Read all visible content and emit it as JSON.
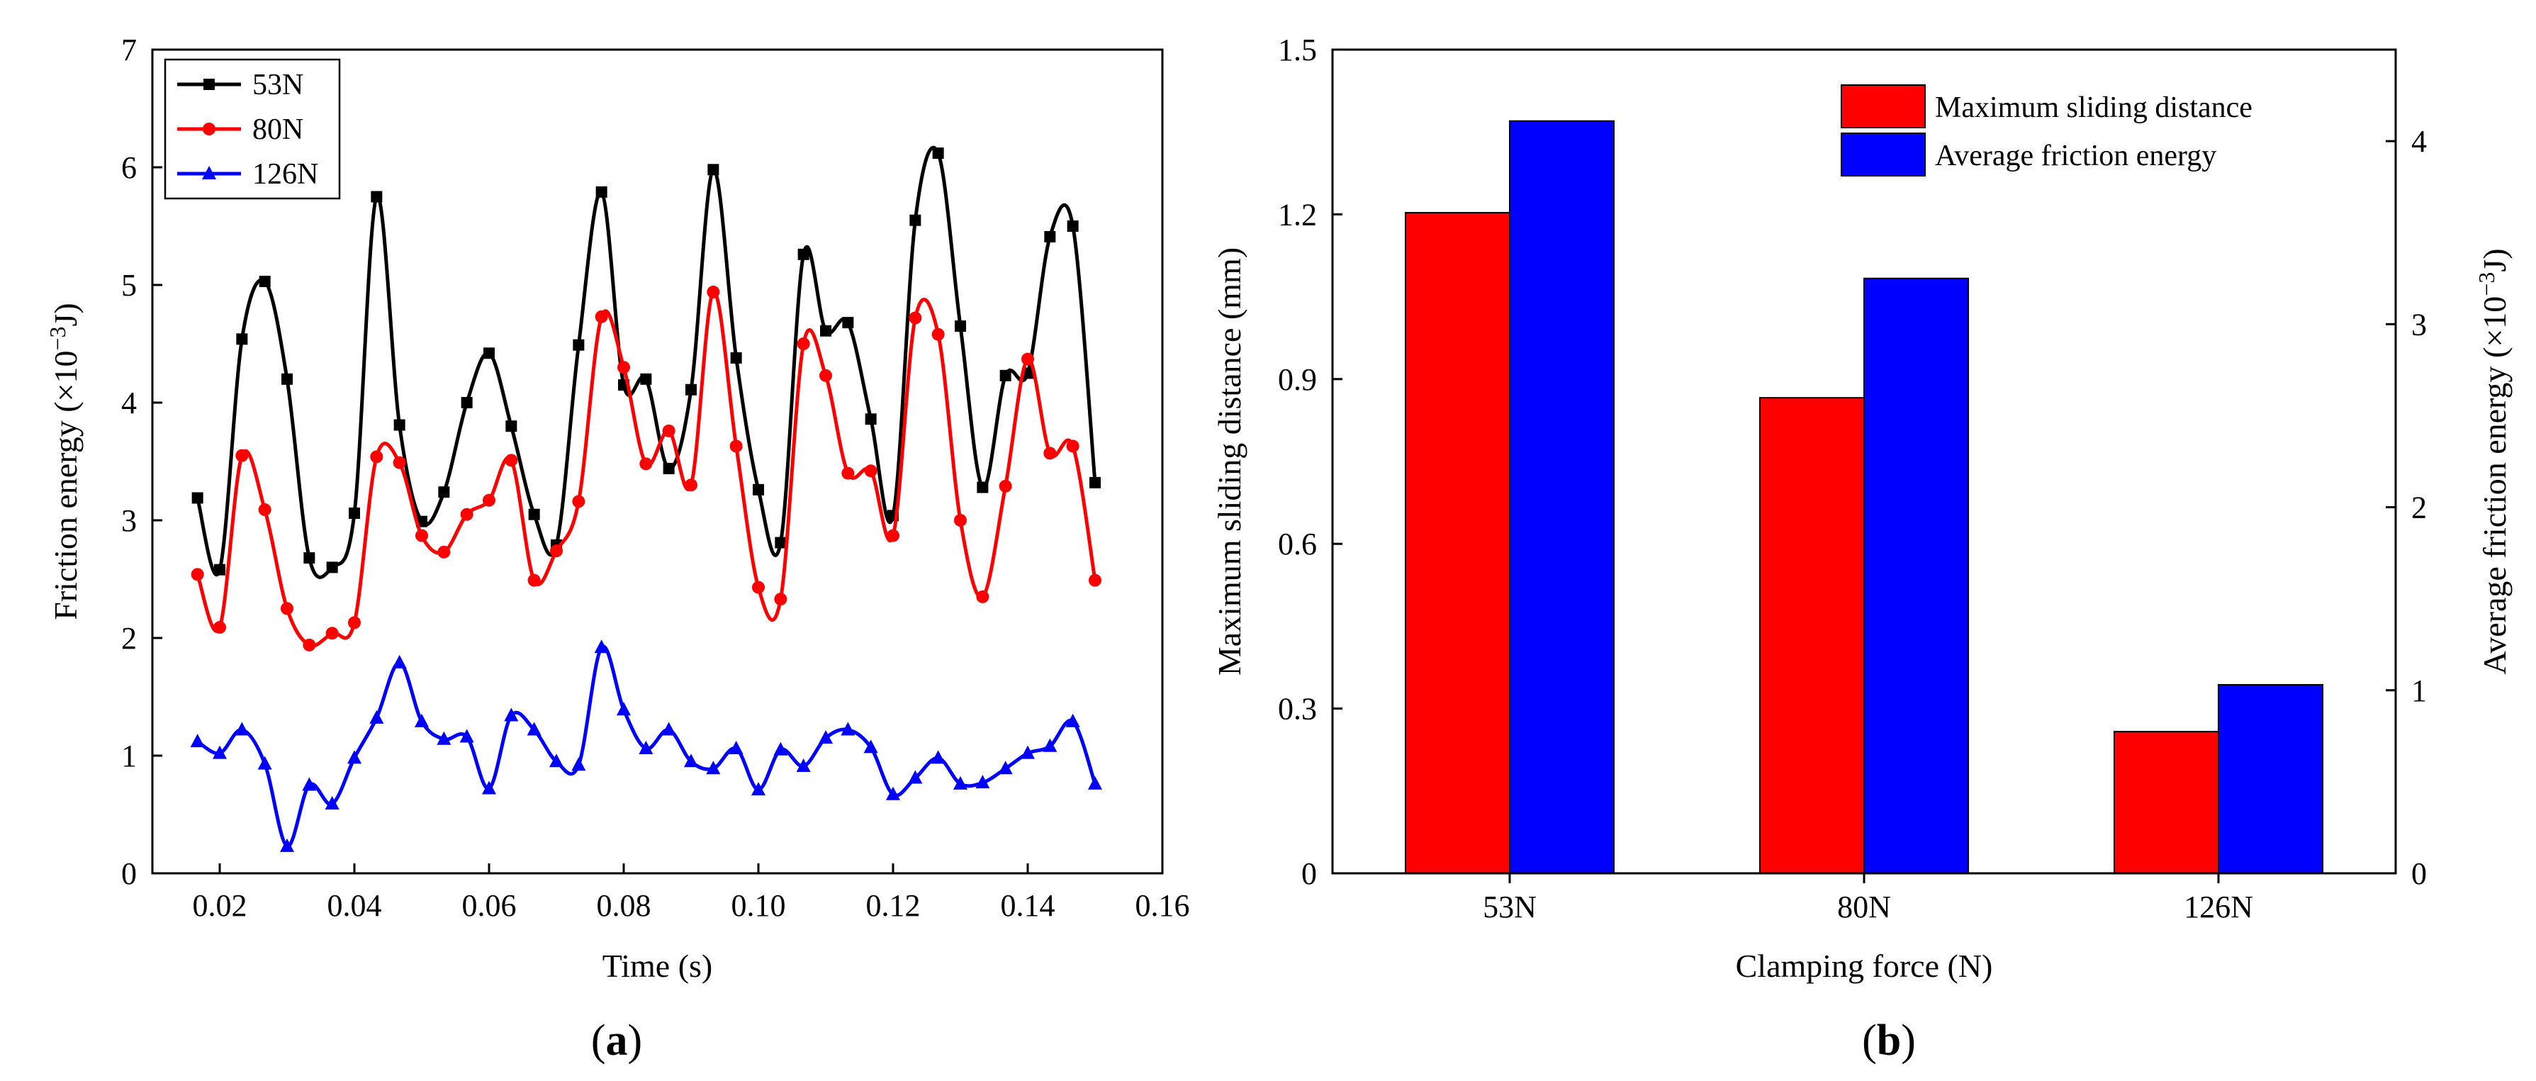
{
  "chart_data": [
    {
      "panel": "(a)",
      "panel_letter": "a",
      "type": "line",
      "xlabel": "Time (s)",
      "ylabel_main": "Friction energy (×10",
      "ylabel_exp": "−3",
      "ylabel_end": "J)",
      "xlim": [
        0.01,
        0.16
      ],
      "ylim": [
        0,
        7
      ],
      "xticks": [
        0.02,
        0.04,
        0.06,
        0.08,
        0.1,
        0.12,
        0.14,
        0.16
      ],
      "xtick_labels": [
        "0.02",
        "0.04",
        "0.06",
        "0.08",
        "0.10",
        "0.12",
        "0.14",
        "0.16"
      ],
      "yticks": [
        0,
        1,
        2,
        3,
        4,
        5,
        6,
        7
      ],
      "ytick_labels": [
        "0",
        "1",
        "2",
        "3",
        "4",
        "5",
        "6",
        "7"
      ],
      "legend_position": "top-left",
      "series": [
        {
          "name": "53N",
          "color": "#000000",
          "marker": "square",
          "x": [
            0.0167,
            0.02,
            0.0233,
            0.0267,
            0.03,
            0.0333,
            0.0367,
            0.04,
            0.0433,
            0.0467,
            0.05,
            0.0533,
            0.0567,
            0.06,
            0.0633,
            0.0667,
            0.07,
            0.0733,
            0.0767,
            0.08,
            0.0833,
            0.0867,
            0.09,
            0.0933,
            0.0967,
            0.1,
            0.1033,
            0.1067,
            0.11,
            0.1133,
            0.1167,
            0.12,
            0.1233,
            0.1267,
            0.13,
            0.1333,
            0.1367,
            0.14,
            0.1433,
            0.1467,
            0.15
          ],
          "y": [
            3.19,
            2.58,
            4.54,
            5.03,
            4.2,
            2.68,
            2.6,
            3.06,
            5.75,
            3.81,
            2.99,
            3.24,
            4.0,
            4.42,
            3.8,
            3.05,
            2.79,
            4.49,
            5.79,
            4.15,
            4.2,
            3.44,
            4.11,
            5.98,
            4.38,
            3.26,
            2.81,
            5.26,
            4.61,
            4.68,
            3.86,
            3.04,
            5.55,
            6.12,
            4.65,
            3.28,
            4.23,
            4.25,
            5.41,
            5.5,
            3.32
          ]
        },
        {
          "name": "80N",
          "color": "#ff0000",
          "marker": "circle",
          "x": [
            0.0167,
            0.02,
            0.0233,
            0.0267,
            0.03,
            0.0333,
            0.0367,
            0.04,
            0.0433,
            0.0467,
            0.05,
            0.0533,
            0.0567,
            0.06,
            0.0633,
            0.0667,
            0.07,
            0.0733,
            0.0767,
            0.08,
            0.0833,
            0.0867,
            0.09,
            0.0933,
            0.0967,
            0.1,
            0.1033,
            0.1067,
            0.11,
            0.1133,
            0.1167,
            0.12,
            0.1233,
            0.1267,
            0.13,
            0.1333,
            0.1367,
            0.14,
            0.1433,
            0.1467,
            0.15
          ],
          "y": [
            2.54,
            2.09,
            3.55,
            3.09,
            2.25,
            1.94,
            2.04,
            2.13,
            3.54,
            3.49,
            2.87,
            2.73,
            3.05,
            3.17,
            3.51,
            2.49,
            2.74,
            3.16,
            4.73,
            4.3,
            3.48,
            3.76,
            3.3,
            4.94,
            3.63,
            2.43,
            2.33,
            4.5,
            4.23,
            3.4,
            3.42,
            2.87,
            4.72,
            4.58,
            3.0,
            2.35,
            3.29,
            4.37,
            3.57,
            3.63,
            2.49
          ]
        },
        {
          "name": "126N",
          "color": "#0000ff",
          "marker": "triangle",
          "x": [
            0.0167,
            0.02,
            0.0233,
            0.0267,
            0.03,
            0.0333,
            0.0367,
            0.04,
            0.0433,
            0.0467,
            0.05,
            0.0533,
            0.0567,
            0.06,
            0.0633,
            0.0667,
            0.07,
            0.0733,
            0.0767,
            0.08,
            0.0833,
            0.0867,
            0.09,
            0.0933,
            0.0967,
            0.1,
            0.1033,
            0.1067,
            0.11,
            0.1133,
            0.1167,
            0.12,
            0.1233,
            0.1267,
            0.13,
            0.1333,
            0.1367,
            0.14,
            0.1433,
            0.1467,
            0.15
          ],
          "y": [
            1.12,
            1.02,
            1.22,
            0.93,
            0.23,
            0.75,
            0.59,
            0.98,
            1.32,
            1.79,
            1.29,
            1.14,
            1.16,
            0.72,
            1.34,
            1.22,
            0.95,
            0.92,
            1.92,
            1.39,
            1.06,
            1.22,
            0.95,
            0.89,
            1.06,
            0.71,
            1.05,
            0.91,
            1.15,
            1.22,
            1.07,
            0.67,
            0.81,
            0.98,
            0.76,
            0.77,
            0.89,
            1.02,
            1.08,
            1.29,
            0.76
          ]
        }
      ]
    },
    {
      "panel": "(b)",
      "panel_letter": "b",
      "type": "bar",
      "xlabel": "Clamping force (N)",
      "ylabel_left": "Maximum sliding distance (mm)",
      "ylabel_right_main": "Average friction energy (×10",
      "ylabel_right_exp": "−3",
      "ylabel_right_end": "J)",
      "categories": [
        "53N",
        "80N",
        "126N"
      ],
      "ylim_left": [
        0,
        1.5
      ],
      "yticks_left": [
        0,
        0.3,
        0.6,
        0.9,
        1.2,
        1.5
      ],
      "ytick_labels_left": [
        "0",
        "0.3",
        "0.6",
        "0.9",
        "1.2",
        "1.5"
      ],
      "ylim_right": [
        0,
        4.5
      ],
      "yticks_right": [
        0,
        1,
        2,
        3,
        4
      ],
      "ytick_labels_right": [
        "0",
        "1",
        "2",
        "3",
        "4"
      ],
      "legend_position": "top-right",
      "series": [
        {
          "name": "Maximum sliding distance",
          "color": "#ff0000",
          "axis": "left",
          "values": [
            1.203,
            0.866,
            0.258
          ]
        },
        {
          "name": "Average friction energy",
          "color": "#0000ff",
          "axis": "right",
          "values": [
            4.11,
            3.25,
            1.03
          ]
        }
      ]
    }
  ]
}
